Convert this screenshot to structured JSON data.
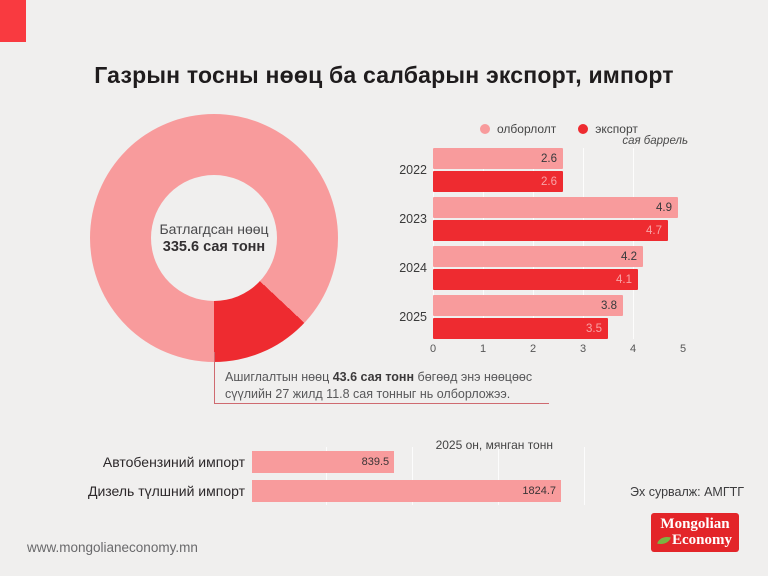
{
  "title": "Газрын тосны нөөц ба салбарын экспорт, импорт",
  "colors": {
    "background": "#f0efee",
    "pink": "#f89b9c",
    "red": "#ee2b30",
    "accent_square": "#f93a40",
    "logo_red": "#e32529",
    "leaf_green": "#7cb342",
    "leader_line": "#cf6a70"
  },
  "annotation": {
    "text_before": "Ашиглалтын  нөөц",
    "text_bold": "43.6 сая тонн",
    "text_after": "бөгөөд энэ нөөцөөс сүүлийн 27 жилд 11.8 сая тонныг нь олборложээ."
  },
  "chart_data": [
    {
      "id": "reserves-donut",
      "type": "pie",
      "donut": true,
      "center_label": "Батлагдсан нөөц",
      "center_value": "335.6 сая тонн",
      "total": 335.6,
      "slices": [
        {
          "label": "",
          "value": 292.0,
          "color": "#f89b9c"
        },
        {
          "label": "Ашиглалтын нөөц",
          "value": 43.6,
          "color": "#ee2b30"
        }
      ]
    },
    {
      "id": "production-export",
      "type": "bar",
      "orientation": "horizontal",
      "unit_label": "сая баррель",
      "categories": [
        "2022",
        "2023",
        "2024",
        "2025"
      ],
      "series": [
        {
          "name": "олборлолт",
          "color": "#f89b9c",
          "values": [
            2.6,
            4.9,
            4.2,
            3.8
          ]
        },
        {
          "name": "экспорт",
          "color": "#ee2b30",
          "values": [
            2.6,
            4.7,
            4.1,
            3.5
          ]
        }
      ],
      "xlim": [
        0,
        5
      ],
      "xticks": [
        0,
        1,
        2,
        3,
        4,
        5
      ],
      "legend_position": "top",
      "grid": true
    },
    {
      "id": "import-2025",
      "type": "bar",
      "orientation": "horizontal",
      "title": "2025 он, мянган тонн",
      "categories": [
        "Автобензиний импорт",
        "Дизель түлшний импорт"
      ],
      "values": [
        839.5,
        1824.7
      ],
      "xmax": 1824.7,
      "color": "#f89b9c",
      "grid": true
    }
  ],
  "footer": {
    "website": "www.mongolianeconomy.mn",
    "source": "Эх сурвалж: АМГТГ",
    "logo_line1": "Mongolian",
    "logo_line2": "Economy"
  }
}
